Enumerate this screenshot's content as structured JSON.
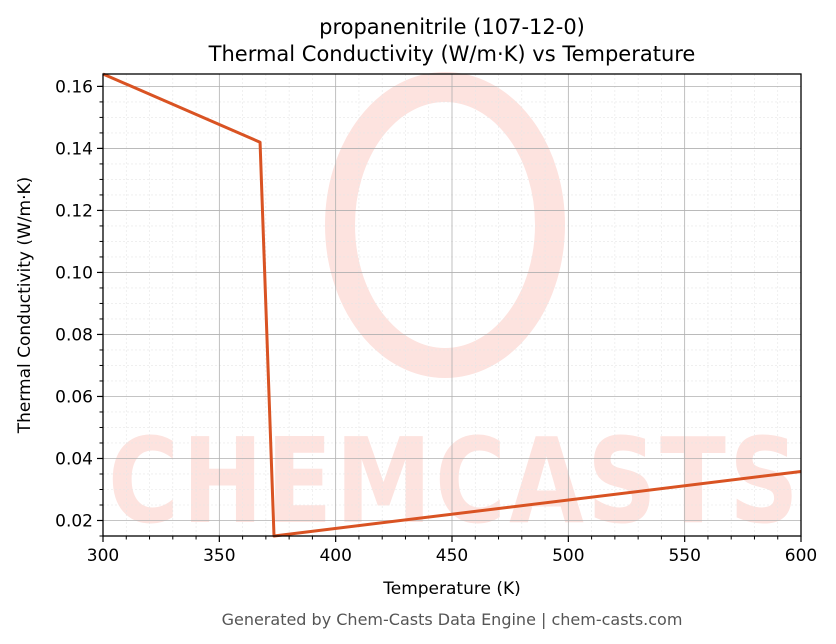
{
  "chart_data": {
    "type": "line",
    "title_line1": "propanenitrile (107-12-0)",
    "title_line2": "Thermal Conductivity (W/m·K) vs Temperature",
    "xlabel": "Temperature (K)",
    "ylabel": "Thermal Conductivity (W/m·K)",
    "xlim": [
      300,
      600
    ],
    "ylim": [
      0.015,
      0.164
    ],
    "xticks": [
      300,
      350,
      400,
      450,
      500,
      550,
      600
    ],
    "xtick_labels": [
      "300",
      "350",
      "400",
      "450",
      "500",
      "550",
      "600"
    ],
    "yticks": [
      0.02,
      0.04,
      0.06,
      0.08,
      0.1,
      0.12,
      0.14,
      0.16
    ],
    "ytick_labels": [
      "0.02",
      "0.04",
      "0.06",
      "0.08",
      "0.10",
      "0.12",
      "0.14",
      "0.16"
    ],
    "grid": true,
    "line_color": "#d95323",
    "series": [
      {
        "x": [
          300,
          367.5,
          373.5,
          600
        ],
        "y": [
          0.164,
          0.142,
          0.015,
          0.0358
        ]
      }
    ]
  },
  "watermark": {
    "text": "CHEMCASTS",
    "color": "#fde3df"
  },
  "footer": "Generated by Chem-Casts Data Engine | chem-casts.com"
}
